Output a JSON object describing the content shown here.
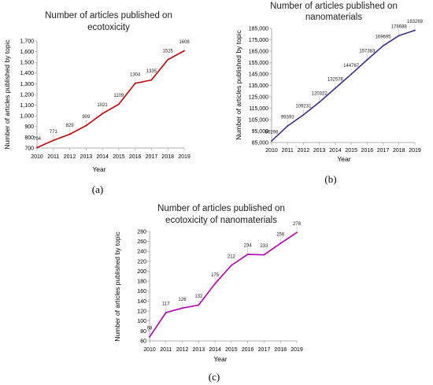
{
  "chart_data": [
    {
      "type": "line",
      "title": "Number of articles published on ecotoxicity",
      "title_lines": [
        "Number of articles published on",
        "ecotoxicity"
      ],
      "xlabel": "Year",
      "ylabel": "Number of articles published by topic",
      "caption": "(a)",
      "color": "#c00000",
      "x": [
        2010,
        2011,
        2012,
        2013,
        2014,
        2015,
        2016,
        2017,
        2018,
        2019
      ],
      "values": [
        704,
        771,
        829,
        909,
        1021,
        1109,
        1304,
        1335,
        1525,
        1608
      ],
      "data_labels": [
        "704",
        "771",
        "829",
        "909",
        "1021",
        "1109",
        "1304",
        "1335",
        "1525",
        "1608"
      ],
      "ylim": [
        700,
        1700
      ],
      "yticks": [
        700,
        800,
        900,
        1000,
        1100,
        1200,
        1300,
        1400,
        1500,
        1600,
        1700
      ],
      "ytick_labels": [
        "700",
        "800",
        "900",
        "1,000",
        "1,100",
        "1,200",
        "1,300",
        "1,400",
        "1,500",
        "1,600",
        "1,700"
      ],
      "grid": false,
      "legend": "none"
    },
    {
      "type": "line",
      "title": "Number of articles published on nanomaterials",
      "title_lines": [
        "Number of articles published on",
        "nanomaterials"
      ],
      "xlabel": "Year",
      "ylabel": "Number of articles published by topic",
      "caption": "(b)",
      "color": "#3b2d8f",
      "x": [
        2010,
        2011,
        2012,
        2013,
        2014,
        2015,
        2016,
        2017,
        2018,
        2019
      ],
      "values": [
        86298,
        99393,
        109231,
        120322,
        132578,
        144767,
        157383,
        169695,
        178688,
        183269
      ],
      "data_labels": [
        "86298",
        "99393",
        "109231",
        "120322",
        "132578",
        "144767",
        "157383",
        "169695",
        "178688",
        "183269"
      ],
      "ylim": [
        85000,
        185000
      ],
      "yticks": [
        85000,
        95000,
        105000,
        115000,
        125000,
        135000,
        145000,
        155000,
        165000,
        175000,
        185000
      ],
      "ytick_labels": [
        "85,000",
        "95,000",
        "105,000",
        "115,000",
        "125,000",
        "135,000",
        "145,000",
        "155,000",
        "165,000",
        "175,000",
        "185,000"
      ],
      "grid": false,
      "legend": "none"
    },
    {
      "type": "line",
      "title": "Number of articles published on ecotoxicity of nanomaterials",
      "title_lines": [
        "Number of articles published on",
        "ecotoxicity of nanomaterials"
      ],
      "xlabel": "Year",
      "ylabel": "Number of articles published by topic",
      "caption": "(c)",
      "color": "#b000b5",
      "x": [
        2010,
        2011,
        2012,
        2013,
        2014,
        2015,
        2016,
        2017,
        2018,
        2019
      ],
      "values": [
        68,
        117,
        126,
        132,
        175,
        212,
        234,
        233,
        256,
        278
      ],
      "data_labels": [
        "68",
        "117",
        "126",
        "132",
        "175",
        "212",
        "234",
        "233",
        "256",
        "278"
      ],
      "ylim": [
        60,
        280
      ],
      "yticks": [
        60,
        80,
        100,
        120,
        140,
        160,
        180,
        200,
        220,
        240,
        260,
        280
      ],
      "ytick_labels": [
        "60",
        "80",
        "100",
        "120",
        "140",
        "160",
        "180",
        "200",
        "220",
        "240",
        "260",
        "280"
      ],
      "grid": false,
      "legend": "none"
    }
  ]
}
